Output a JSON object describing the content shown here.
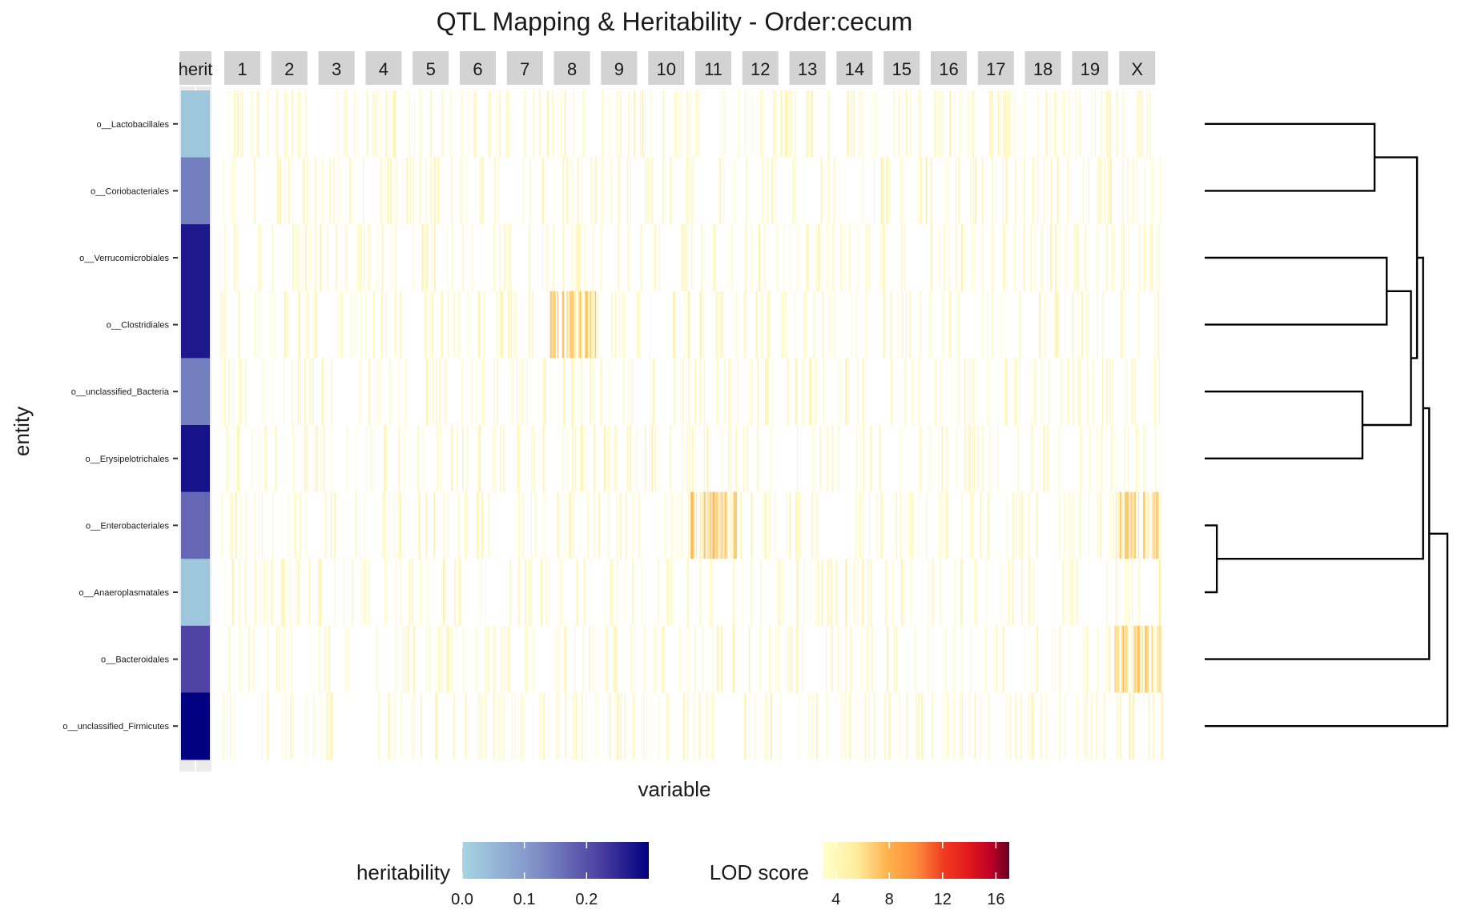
{
  "chart_data": {
    "type": "heatmap",
    "title": "QTL Mapping & Heritability - Order:cecum",
    "xlabel": "variable",
    "ylabel": "entity",
    "herit_strip_label": "herit",
    "chromosomes": [
      "1",
      "2",
      "3",
      "4",
      "5",
      "6",
      "7",
      "8",
      "9",
      "10",
      "11",
      "12",
      "13",
      "14",
      "15",
      "16",
      "17",
      "18",
      "19",
      "X"
    ],
    "entities": [
      "o__Lactobacillales",
      "o__Coriobacteriales",
      "o__Verrucomicrobiales",
      "o__Clostridiales",
      "o__unclassified_Bacteria",
      "o__Erysipelotrichales",
      "o__Enterobacteriales",
      "o__Anaeroplasmatales",
      "o__Bacteroidales",
      "o__unclassified_Firmicutes"
    ],
    "heritability": [
      0.02,
      0.12,
      0.26,
      0.26,
      0.12,
      0.27,
      0.15,
      0.02,
      0.19,
      0.3
    ],
    "lod_score_range": [
      3,
      17
    ],
    "hotspots": [
      {
        "entity": "o__Enterobacteriales",
        "chromosome": "X"
      },
      {
        "entity": "o__Bacteroidales",
        "chromosome": "X"
      },
      {
        "entity": "o__Clostridiales",
        "chromosome": "8"
      },
      {
        "entity": "o__Enterobacteriales",
        "chromosome": "11"
      }
    ],
    "dendrogram_merges": [
      {
        "a": 0,
        "b": 1,
        "height": 0.06
      },
      {
        "a": 2,
        "b": 3,
        "height": 0.05
      },
      {
        "a": 4,
        "b": 5,
        "height": 0.07
      },
      {
        "a": "c2",
        "b": "c3",
        "height": 0.03
      },
      {
        "a": "c1",
        "b": "c4",
        "height": 0.025
      },
      {
        "a": 6,
        "b": 7,
        "height": 0.19
      },
      {
        "a": "c5",
        "b": "c6",
        "height": 0.02
      },
      {
        "a": "c7",
        "b": 8,
        "height": 0.015
      },
      {
        "a": "c8",
        "b": 9,
        "height": 0.0
      }
    ],
    "legends": {
      "heritability": {
        "title": "heritability",
        "ticks": [
          "0.0",
          "0.1",
          "0.2"
        ],
        "tick_values": [
          0,
          0.1,
          0.2
        ],
        "range": [
          0,
          0.3
        ],
        "colors": [
          "#a6d5e3",
          "#7f90c8",
          "#4a3ca0",
          "#000080"
        ]
      },
      "lod": {
        "title": "LOD score",
        "ticks": [
          "4",
          "8",
          "12",
          "16"
        ],
        "tick_values": [
          4,
          8,
          12,
          16
        ],
        "range": [
          3,
          17
        ],
        "colors": [
          "#ffffcc",
          "#ffeda0",
          "#feb24c",
          "#fd8d3c",
          "#f03b20",
          "#e31a1c",
          "#bd0026",
          "#800026"
        ]
      }
    },
    "strip_color": "#d3d3d3"
  }
}
